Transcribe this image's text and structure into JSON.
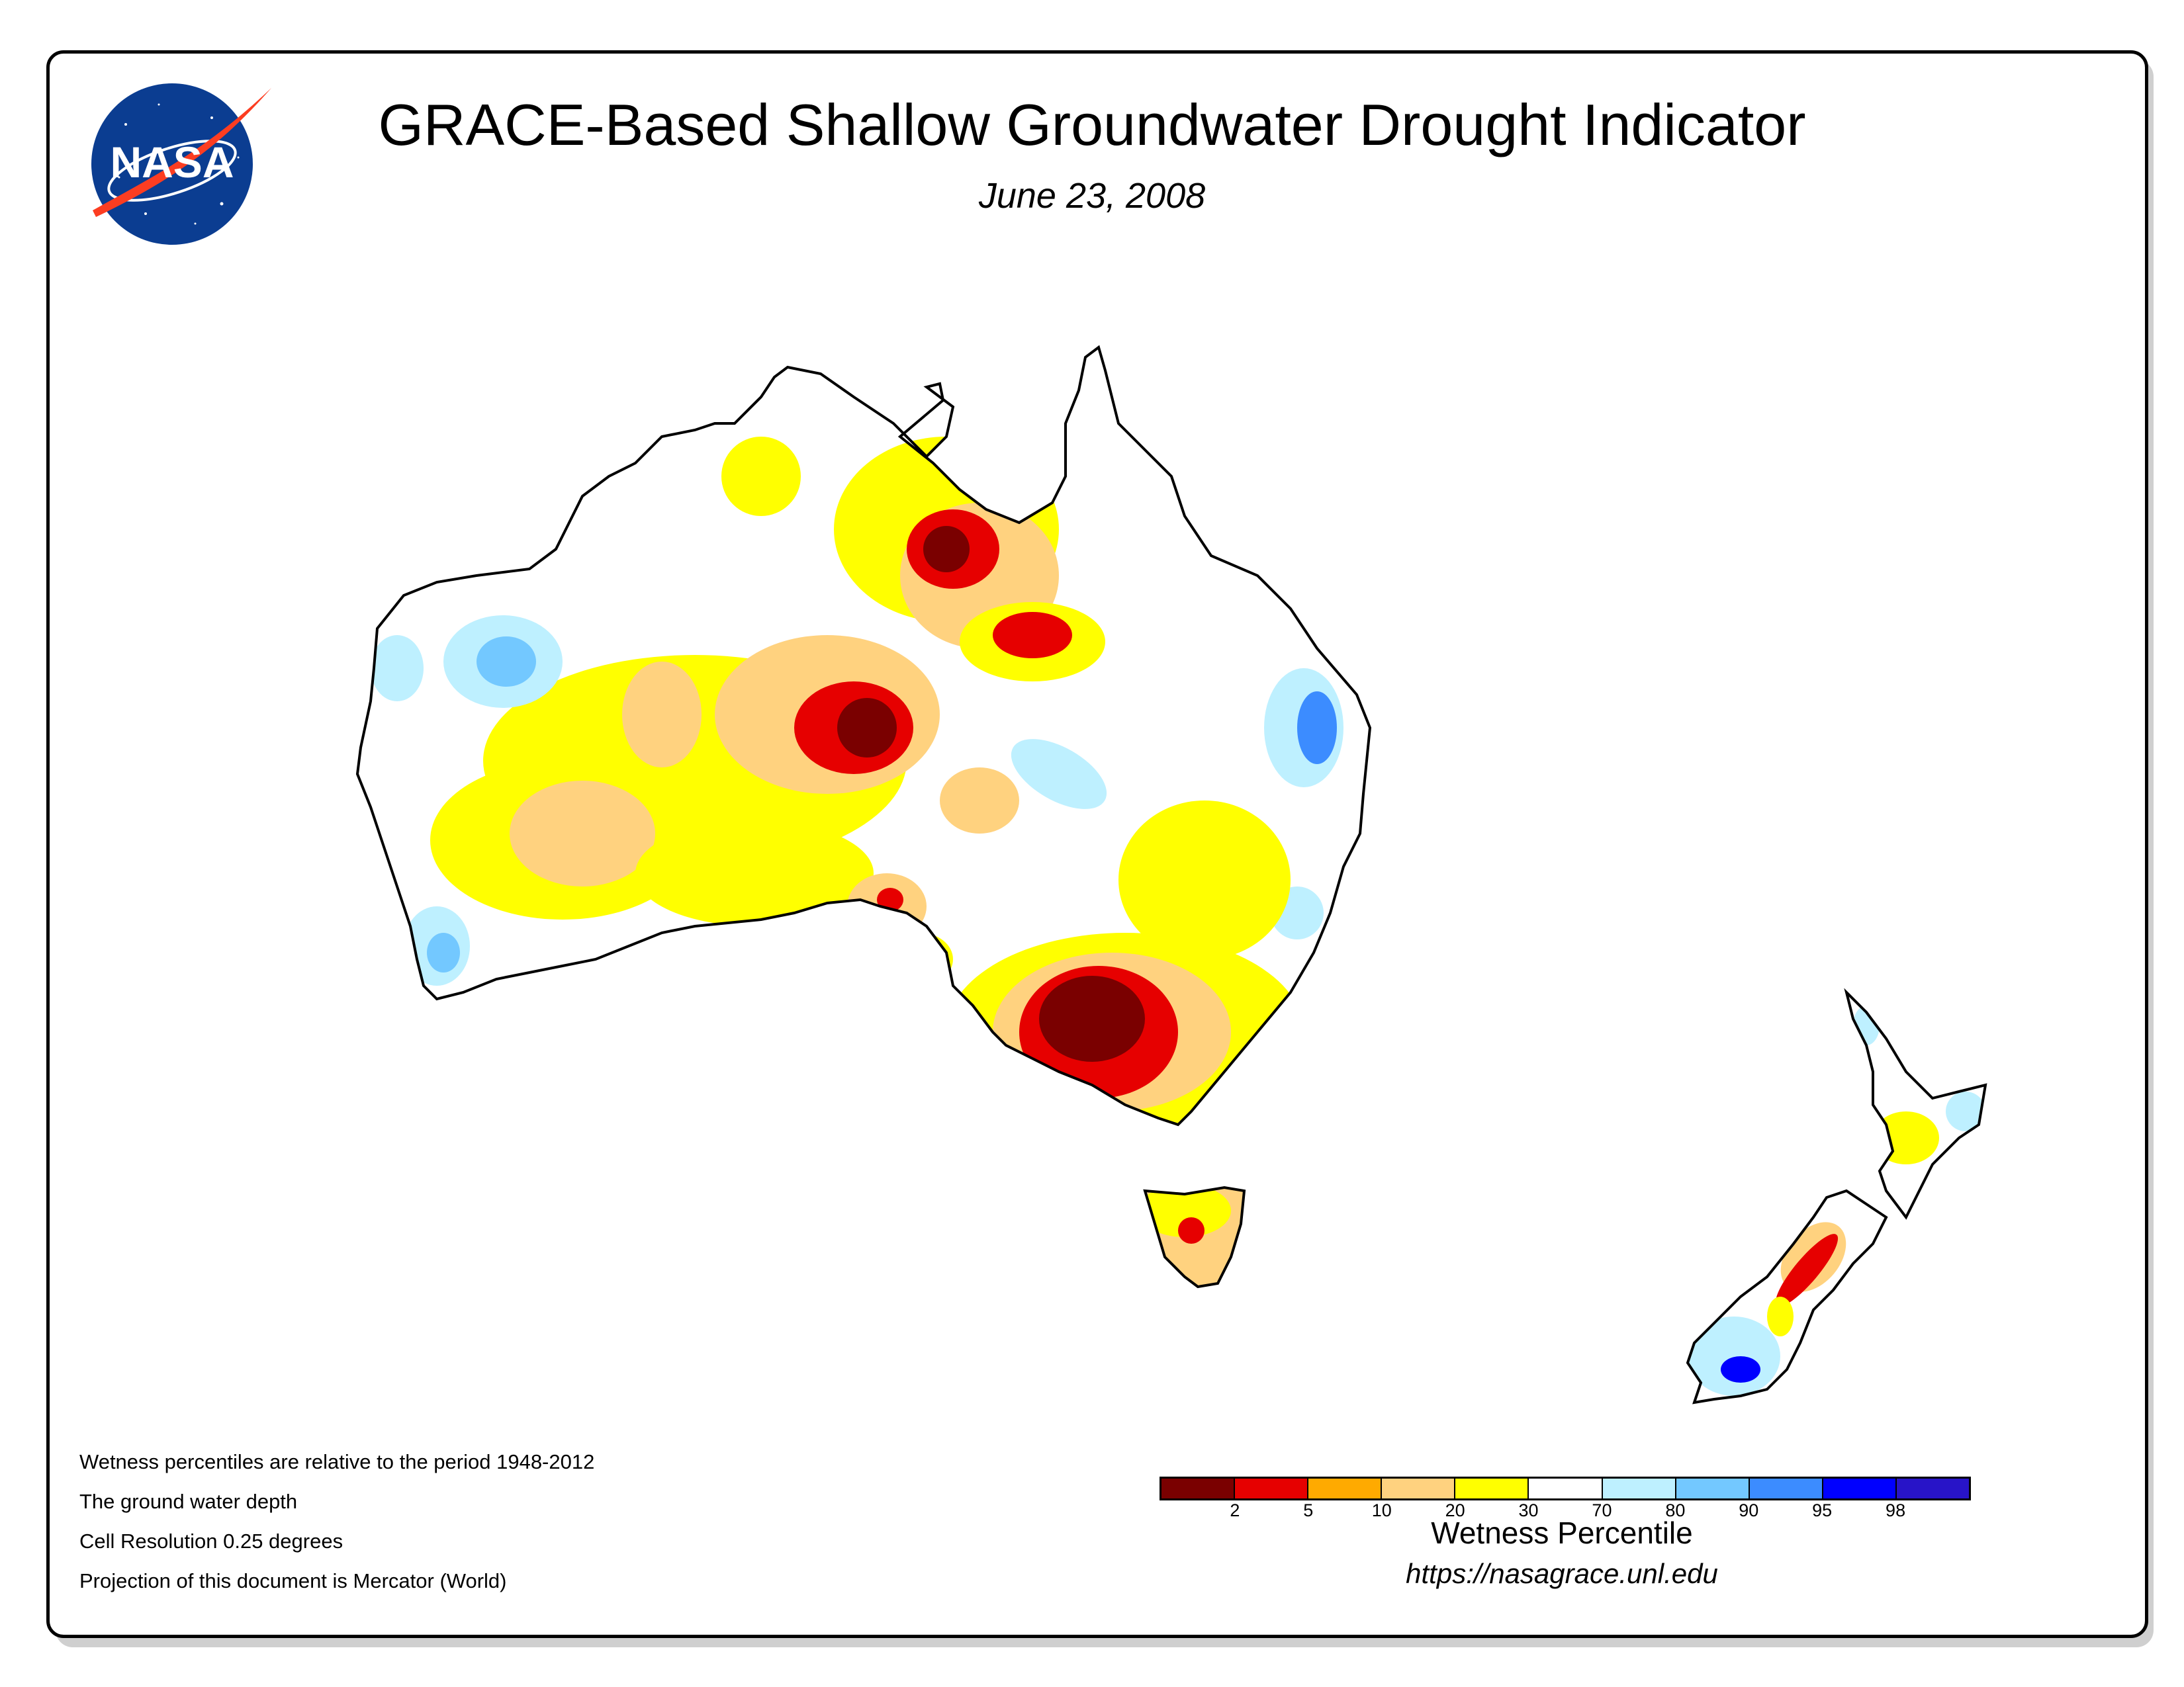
{
  "header": {
    "title": "GRACE-Based Shallow Groundwater Drought Indicator",
    "date": "June 23, 2008",
    "logo_text": "NASA"
  },
  "notes": [
    "Wetness percentiles are relative to the period 1948-2012",
    "The ground water depth",
    "Cell Resolution 0.25 degrees",
    "Projection of this document is Mercator (World)"
  ],
  "legend": {
    "title": "Wetness Percentile",
    "url": "https://nasagrace.unl.edu",
    "colors": [
      "#7a0000",
      "#e60000",
      "#ffaa00",
      "#ffd27f",
      "#ffff00",
      "#ffffff",
      "#bef0ff",
      "#73c8ff",
      "#3c8cff",
      "#0000ff",
      "#2814c8"
    ],
    "ticks": [
      "2",
      "5",
      "10",
      "20",
      "30",
      "70",
      "80",
      "90",
      "95",
      "98"
    ]
  },
  "map": {
    "regions": [
      "Australia",
      "Tasmania",
      "New Zealand North Island",
      "New Zealand South Island"
    ],
    "land_color": "#ffffff",
    "outline_color": "#000000"
  }
}
